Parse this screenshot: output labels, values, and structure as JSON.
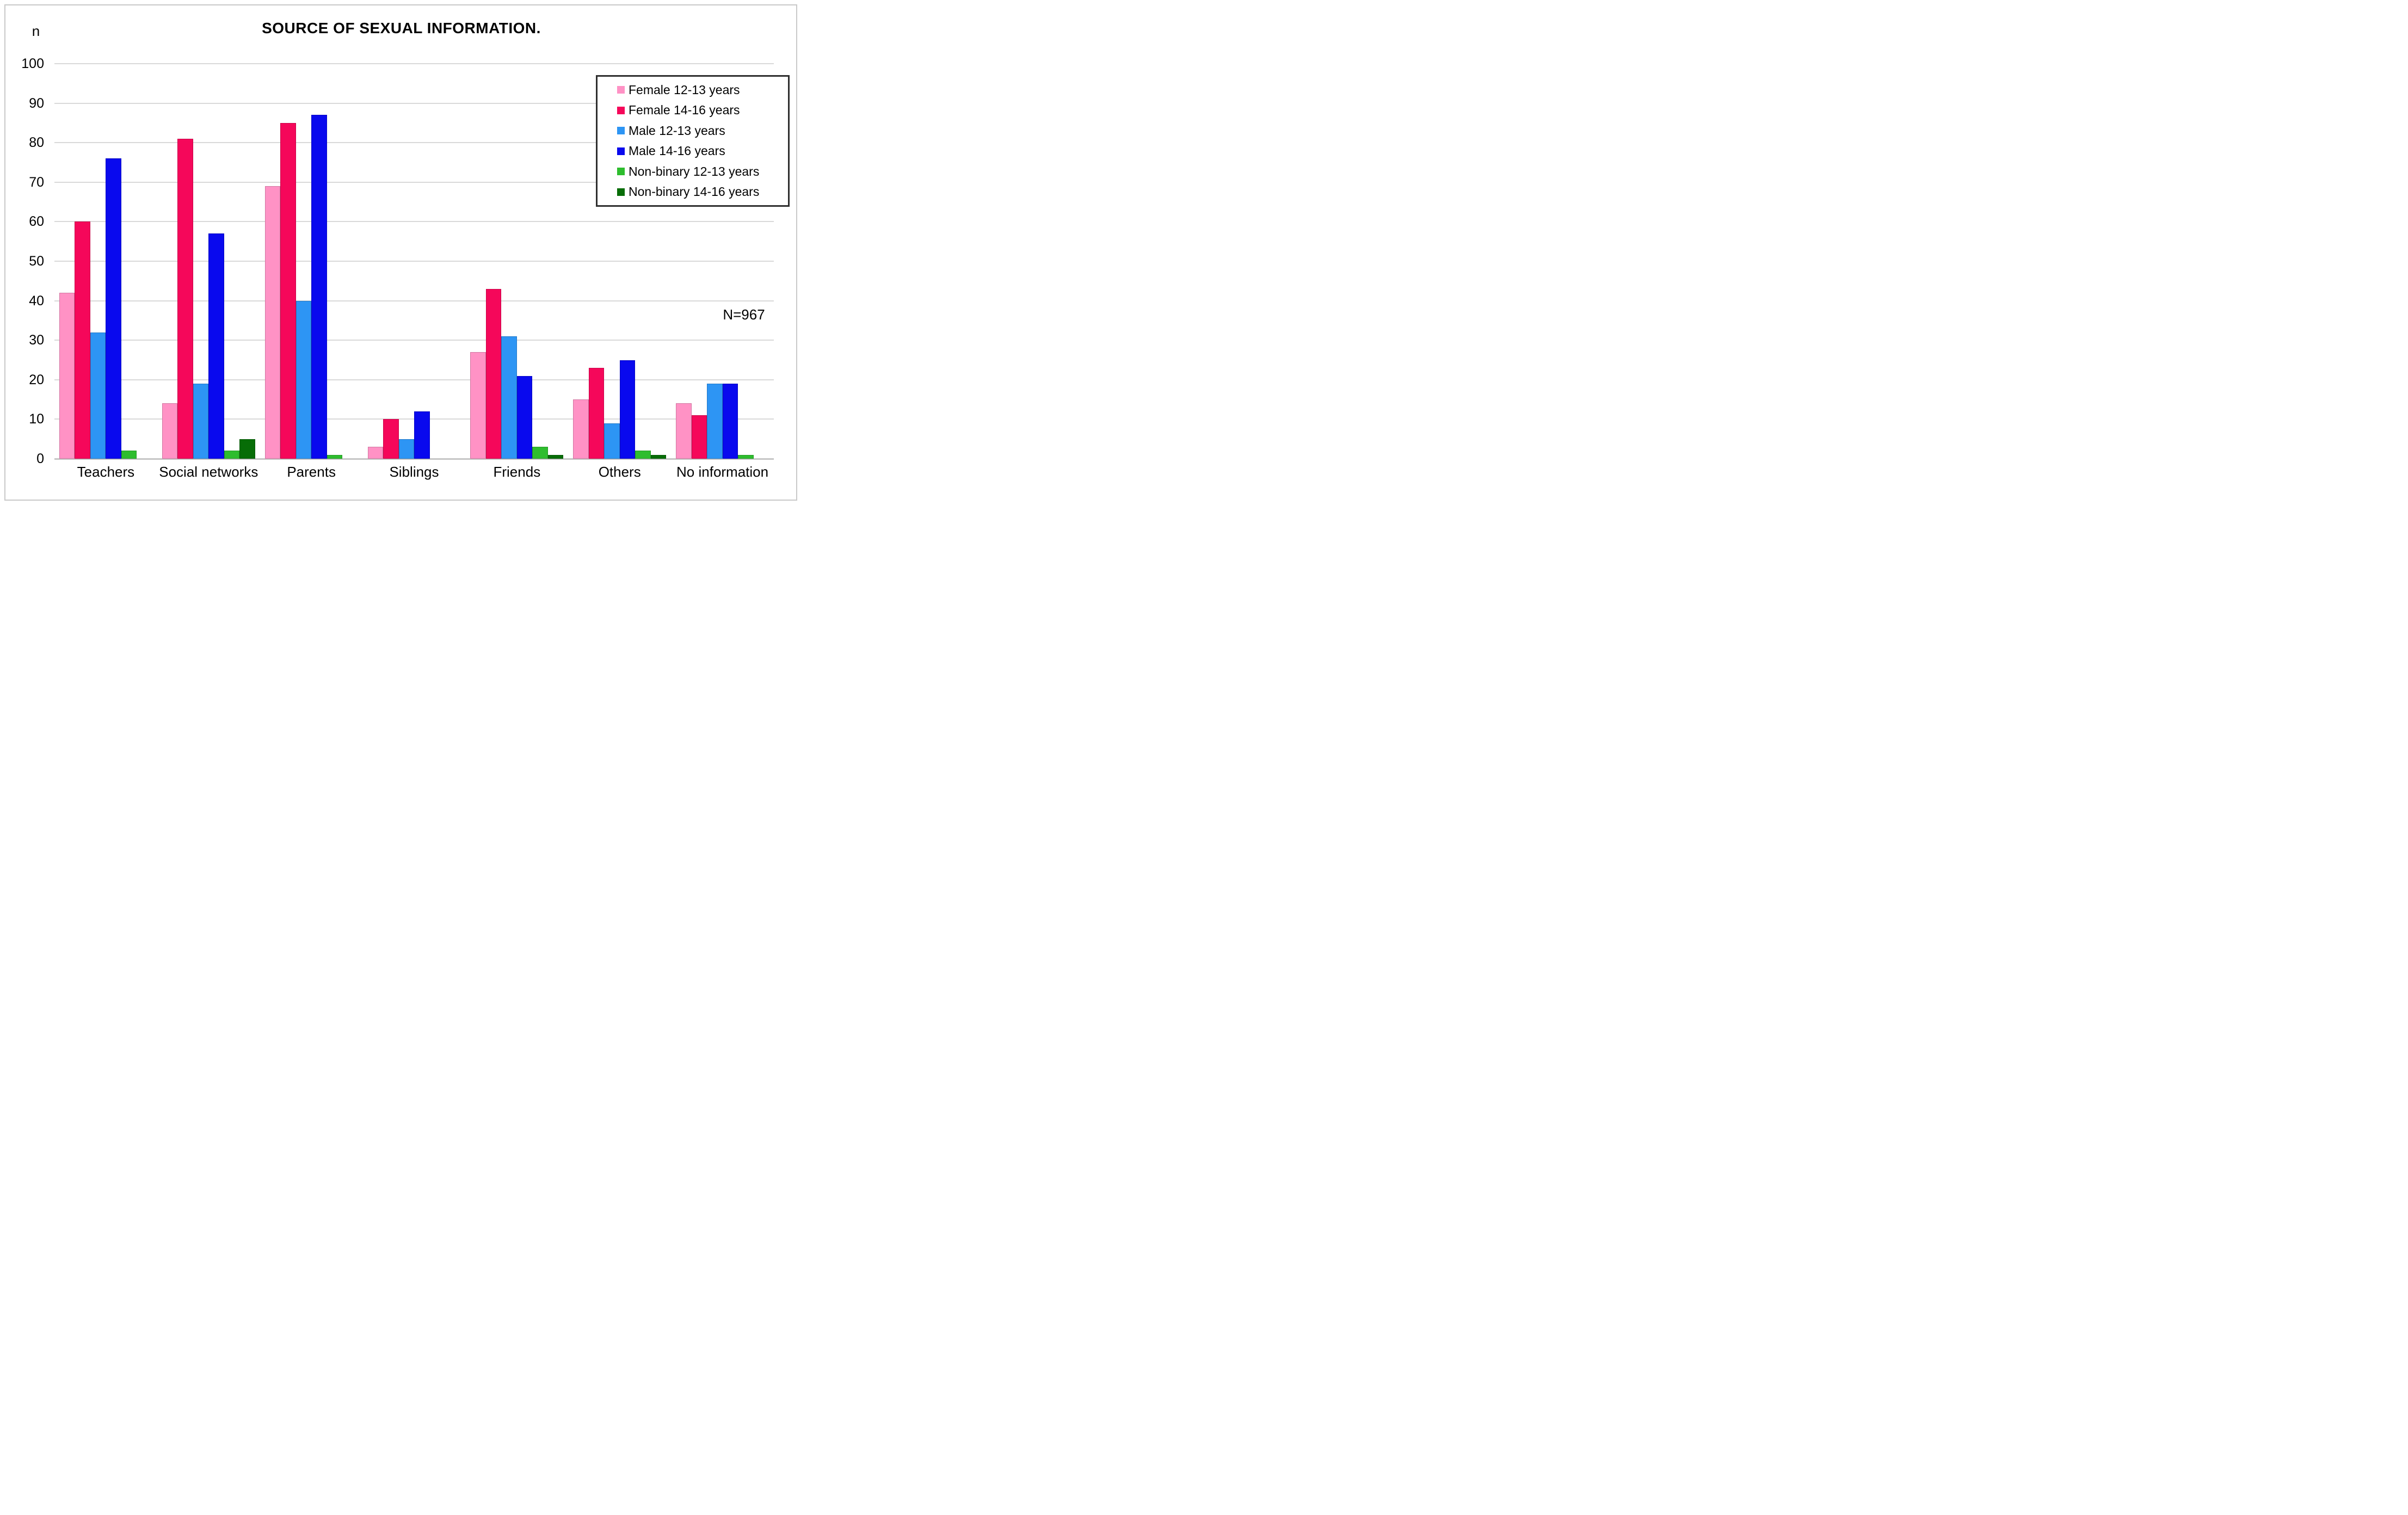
{
  "figure": {
    "title": "SOURCE OF SEXUAL INFORMATION.",
    "y_axis_unit": "n",
    "annotation": "N=967"
  },
  "chart_data": {
    "type": "bar",
    "title": "SOURCE OF SEXUAL INFORMATION.",
    "xlabel": "",
    "ylabel": "n",
    "ylim": [
      0,
      100
    ],
    "yticks": [
      0,
      10,
      20,
      30,
      40,
      50,
      60,
      70,
      80,
      90,
      100
    ],
    "grid": true,
    "legend_position": "top-right",
    "annotation": "N=967",
    "categories": [
      "Teachers",
      "Social networks",
      "Parents",
      "Siblings",
      "Friends",
      "Others",
      "No information"
    ],
    "series": [
      {
        "name": "Female 12-13 years",
        "color": "#FF92C5",
        "values": [
          42,
          14,
          69,
          3,
          27,
          15,
          14
        ]
      },
      {
        "name": "Female 14-16 years",
        "color": "#F5075A",
        "values": [
          60,
          81,
          85,
          10,
          43,
          23,
          11
        ]
      },
      {
        "name": "Male 12-13 years",
        "color": "#2D95F4",
        "values": [
          32,
          19,
          40,
          5,
          31,
          9,
          19
        ]
      },
      {
        "name": "Male 14-16 years",
        "color": "#0909EE",
        "values": [
          76,
          57,
          87,
          12,
          21,
          25,
          19
        ]
      },
      {
        "name": "Non-binary 12-13 years",
        "color": "#2EBD2E",
        "values": [
          2,
          2,
          1,
          0,
          3,
          2,
          1
        ]
      },
      {
        "name": "Non-binary 14-16 years",
        "color": "#076D07",
        "values": [
          0,
          5,
          0,
          0,
          1,
          1,
          0
        ]
      }
    ],
    "gridline_color": "#D9D9D9",
    "axis_line_color": "#C6C6C6"
  }
}
